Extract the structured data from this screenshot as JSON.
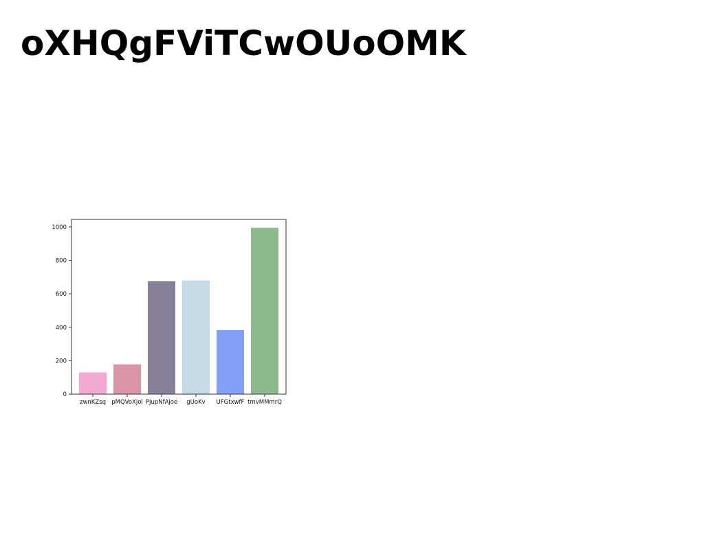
{
  "page": {
    "title": "oXHQgFViTCwOUoOMK"
  },
  "chart_data": {
    "type": "bar",
    "title": "",
    "xlabel": "",
    "ylabel": "",
    "categories": [
      "zwnKZsq",
      "pMQVoXjol",
      "PJupNfAjoe",
      "gUoKv",
      "UFGtxwfF",
      "tmvMMmrQ"
    ],
    "values": [
      130,
      178,
      675,
      680,
      383,
      995
    ],
    "colors": [
      "#f4a9d2",
      "#dc94a8",
      "#87809b",
      "#c4dbe7",
      "#84a0f6",
      "#8eb98c"
    ],
    "ylim": [
      0,
      1045
    ],
    "yticks": [
      0,
      200,
      400,
      600,
      800,
      1000
    ],
    "grid": false
  }
}
